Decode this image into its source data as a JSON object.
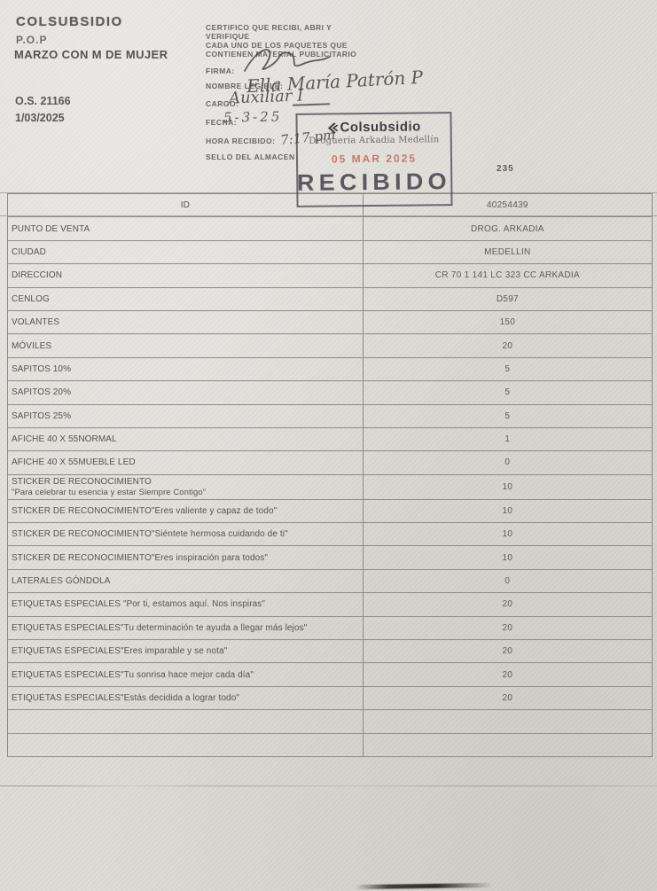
{
  "header": {
    "brand": "COLSUBSIDIO",
    "program": "P.O.P",
    "campaign": "MARZO CON M DE MUJER",
    "order_number": "O.S. 21166",
    "date": "1/03/2025"
  },
  "certification": {
    "lines": [
      "CERTIFICO QUE RECIBI, ABRI Y",
      "VERIFIQUE",
      "CADA UNO DE LOS PAQUETES QUE",
      "CONTIENEN MATERIAL PUBLICITARIO"
    ],
    "firma_label": "FIRMA:",
    "nombre_label": "NOMBRE LEGIBLE:",
    "nombre_value": "Ella María Patrón P",
    "cargo_label": "CARGO:",
    "cargo_value": "Auxiliar I",
    "fecha_label": "FECHA:",
    "fecha_value": "5-3-25",
    "hora_label": "HORA RECIBIDO:",
    "hora_value": "7:17 pm",
    "sello_label": "SELLO DEL ALMACEN"
  },
  "stamp": {
    "brand": "Colsubsidio",
    "store": "Droguería Arkadia Medellín",
    "date": "05 MAR 2025",
    "status": "RECIBIDO"
  },
  "page_ref": "235",
  "table": {
    "rows": [
      {
        "label": "ID",
        "value": "40254439",
        "align": "center"
      },
      {
        "label": "PUNTO DE VENTA",
        "value": "DROG. ARKADIA"
      },
      {
        "label": "CIUDAD",
        "value": "MEDELLIN"
      },
      {
        "label": "DIRECCION",
        "value": "CR 70 1 141 LC 323 CC ARKADIA"
      },
      {
        "label": "CENLOG",
        "value": "D597"
      },
      {
        "label": "VOLANTES",
        "value": "150"
      },
      {
        "label": "MÓVILES",
        "value": "20"
      },
      {
        "label": "SAPITOS 10%",
        "value": "5"
      },
      {
        "label": "SAPITOS 20%",
        "value": "5"
      },
      {
        "label": "SAPITOS 25%",
        "value": "5"
      },
      {
        "label": "AFICHE 40 X 55NORMAL",
        "value": "1"
      },
      {
        "label": "AFICHE 40 X 55MUEBLE LED",
        "value": "0"
      },
      {
        "label": "STICKER DE RECONOCIMIENTO",
        "label2": "\"Para celebrar tu esencia y estar Siempre Contigo\"",
        "value": "10"
      },
      {
        "label": "STICKER DE RECONOCIMIENTO\"Eres valiente y capaz de todo\"",
        "value": "10"
      },
      {
        "label": "STICKER DE RECONOCIMIENTO\"Siéntete hermosa cuidando de ti\"",
        "value": "10"
      },
      {
        "label": "STICKER DE RECONOCIMIENTO\"Eres inspiración para todos\"",
        "value": "10"
      },
      {
        "label": "LATERALES GÓNDOLA",
        "value": "0"
      },
      {
        "label": "ETIQUETAS ESPECIALES \"Por ti, estamos aquí. Nos inspiras\"",
        "value": "20"
      },
      {
        "label": "ETIQUETAS ESPECIALES\"Tu determinación te ayuda a llegar más lejos\"",
        "value": "20"
      },
      {
        "label": "ETIQUETAS ESPECIALES\"Eres imparable y se nota\"",
        "value": "20"
      },
      {
        "label": "ETIQUETAS ESPECIALES\"Tu sonrisa hace mejor cada día\"",
        "value": "20"
      },
      {
        "label": "ETIQUETAS ESPECIALES\"Estás decidida a lograr todo\"",
        "value": "20"
      },
      {
        "label": "",
        "value": ""
      },
      {
        "label": "",
        "value": ""
      }
    ]
  },
  "colors": {
    "paper": "#dedbd6",
    "ink": "#55534f",
    "stamp_ink": "#44434c",
    "stamp_date_red": "#c3675c",
    "pen": "#4a4743"
  }
}
